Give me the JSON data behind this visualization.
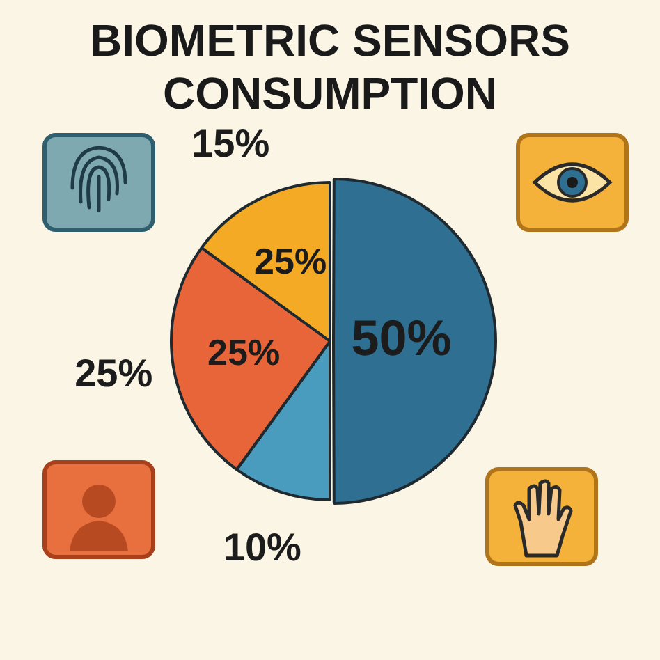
{
  "chart_data": {
    "type": "pie",
    "title": "BIOMETRIC SENSORS CONSUMPTION",
    "categories": [
      null,
      null,
      null,
      null
    ],
    "values": [
      50,
      10,
      25,
      15
    ],
    "colors": [
      "#2f6f92",
      "#4a9cbf",
      "#e8653a",
      "#f5aa26"
    ],
    "value_labels": [
      "50%",
      "10%",
      "25%",
      "15%"
    ],
    "annotations": [
      "25%",
      "25%"
    ],
    "legend": false
  }
}
